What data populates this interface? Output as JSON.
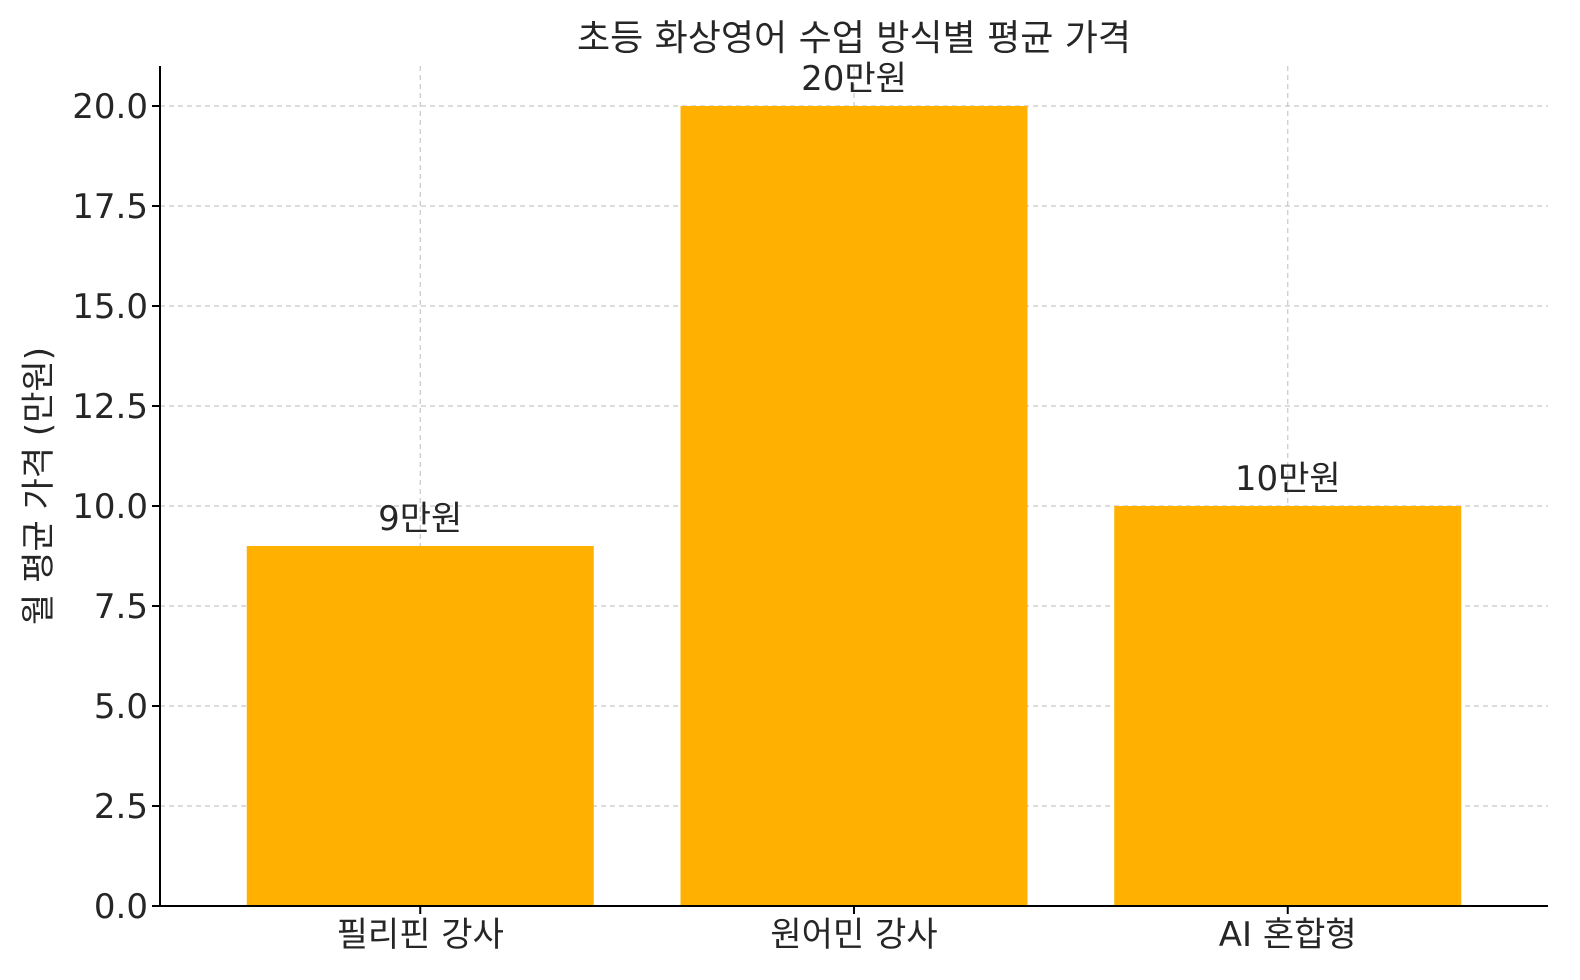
{
  "chart_data": {
    "type": "bar",
    "title": "초등 화상영어 수업 방식별 평균 가격",
    "xlabel": "",
    "ylabel": "월 평균 가격 (만원)",
    "categories": [
      "필리핀 강사",
      "원어민 강사",
      "AI 혼합형"
    ],
    "values": [
      9,
      20,
      10
    ],
    "data_labels": [
      "9만원",
      "20만원",
      "10만원"
    ],
    "ylim": [
      0,
      21
    ],
    "yticks": [
      0,
      2.5,
      5,
      7.5,
      10,
      12.5,
      15,
      17.5,
      20
    ],
    "ytick_labels": [
      "0.0",
      "2.5",
      "5.0",
      "7.5",
      "10.0",
      "12.5",
      "15.0",
      "17.5",
      "20.0"
    ],
    "bar_color": "#FFB000",
    "grid": true,
    "legend": "none"
  }
}
